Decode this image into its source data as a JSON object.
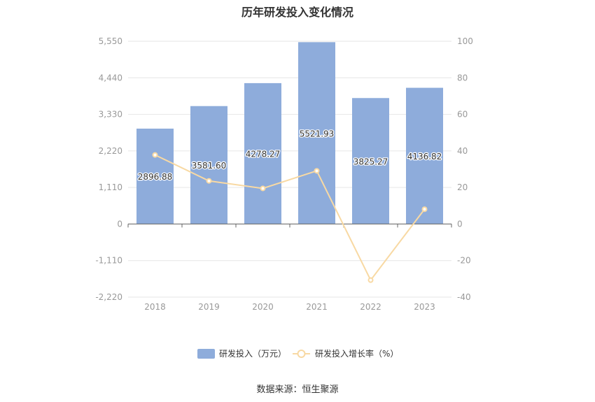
{
  "chart_data": {
    "type": "bar",
    "title": "历年研发投入变化情况",
    "categories": [
      "2018",
      "2019",
      "2020",
      "2021",
      "2022",
      "2023"
    ],
    "series": [
      {
        "name": "研发投入（万元）",
        "type": "bar",
        "axis": "left",
        "values": [
          2896.88,
          3581.6,
          4278.27,
          5521.93,
          3825.27,
          4136.82
        ],
        "labels": [
          "2896.88",
          "3581.60",
          "4278.27",
          "5521.93",
          "3825.27",
          "4136.82"
        ],
        "color": "#8eacdb"
      },
      {
        "name": "研发投入增长率（%）",
        "type": "line",
        "axis": "right",
        "values": [
          37.8,
          23.6,
          19.5,
          29.1,
          -30.7,
          8.1
        ],
        "color": "#f8d9a3"
      }
    ],
    "y_left": {
      "ylim": [
        -2220,
        5550
      ],
      "ticks": [
        -2220,
        -1110,
        0,
        1110,
        2220,
        3330,
        4440,
        5550
      ],
      "tick_labels": [
        "-2,220",
        "-1,110",
        "0",
        "1,110",
        "2,220",
        "3,330",
        "4,440",
        "5,550"
      ]
    },
    "y_right": {
      "ylim": [
        -40,
        100
      ],
      "ticks": [
        -40,
        -20,
        0,
        20,
        40,
        60,
        80,
        100
      ],
      "tick_labels": [
        "-40",
        "-20",
        "0",
        "20",
        "40",
        "60",
        "80",
        "100"
      ]
    },
    "grid": true,
    "legend_position": "bottom-center",
    "source": "数据来源：恒生聚源"
  }
}
